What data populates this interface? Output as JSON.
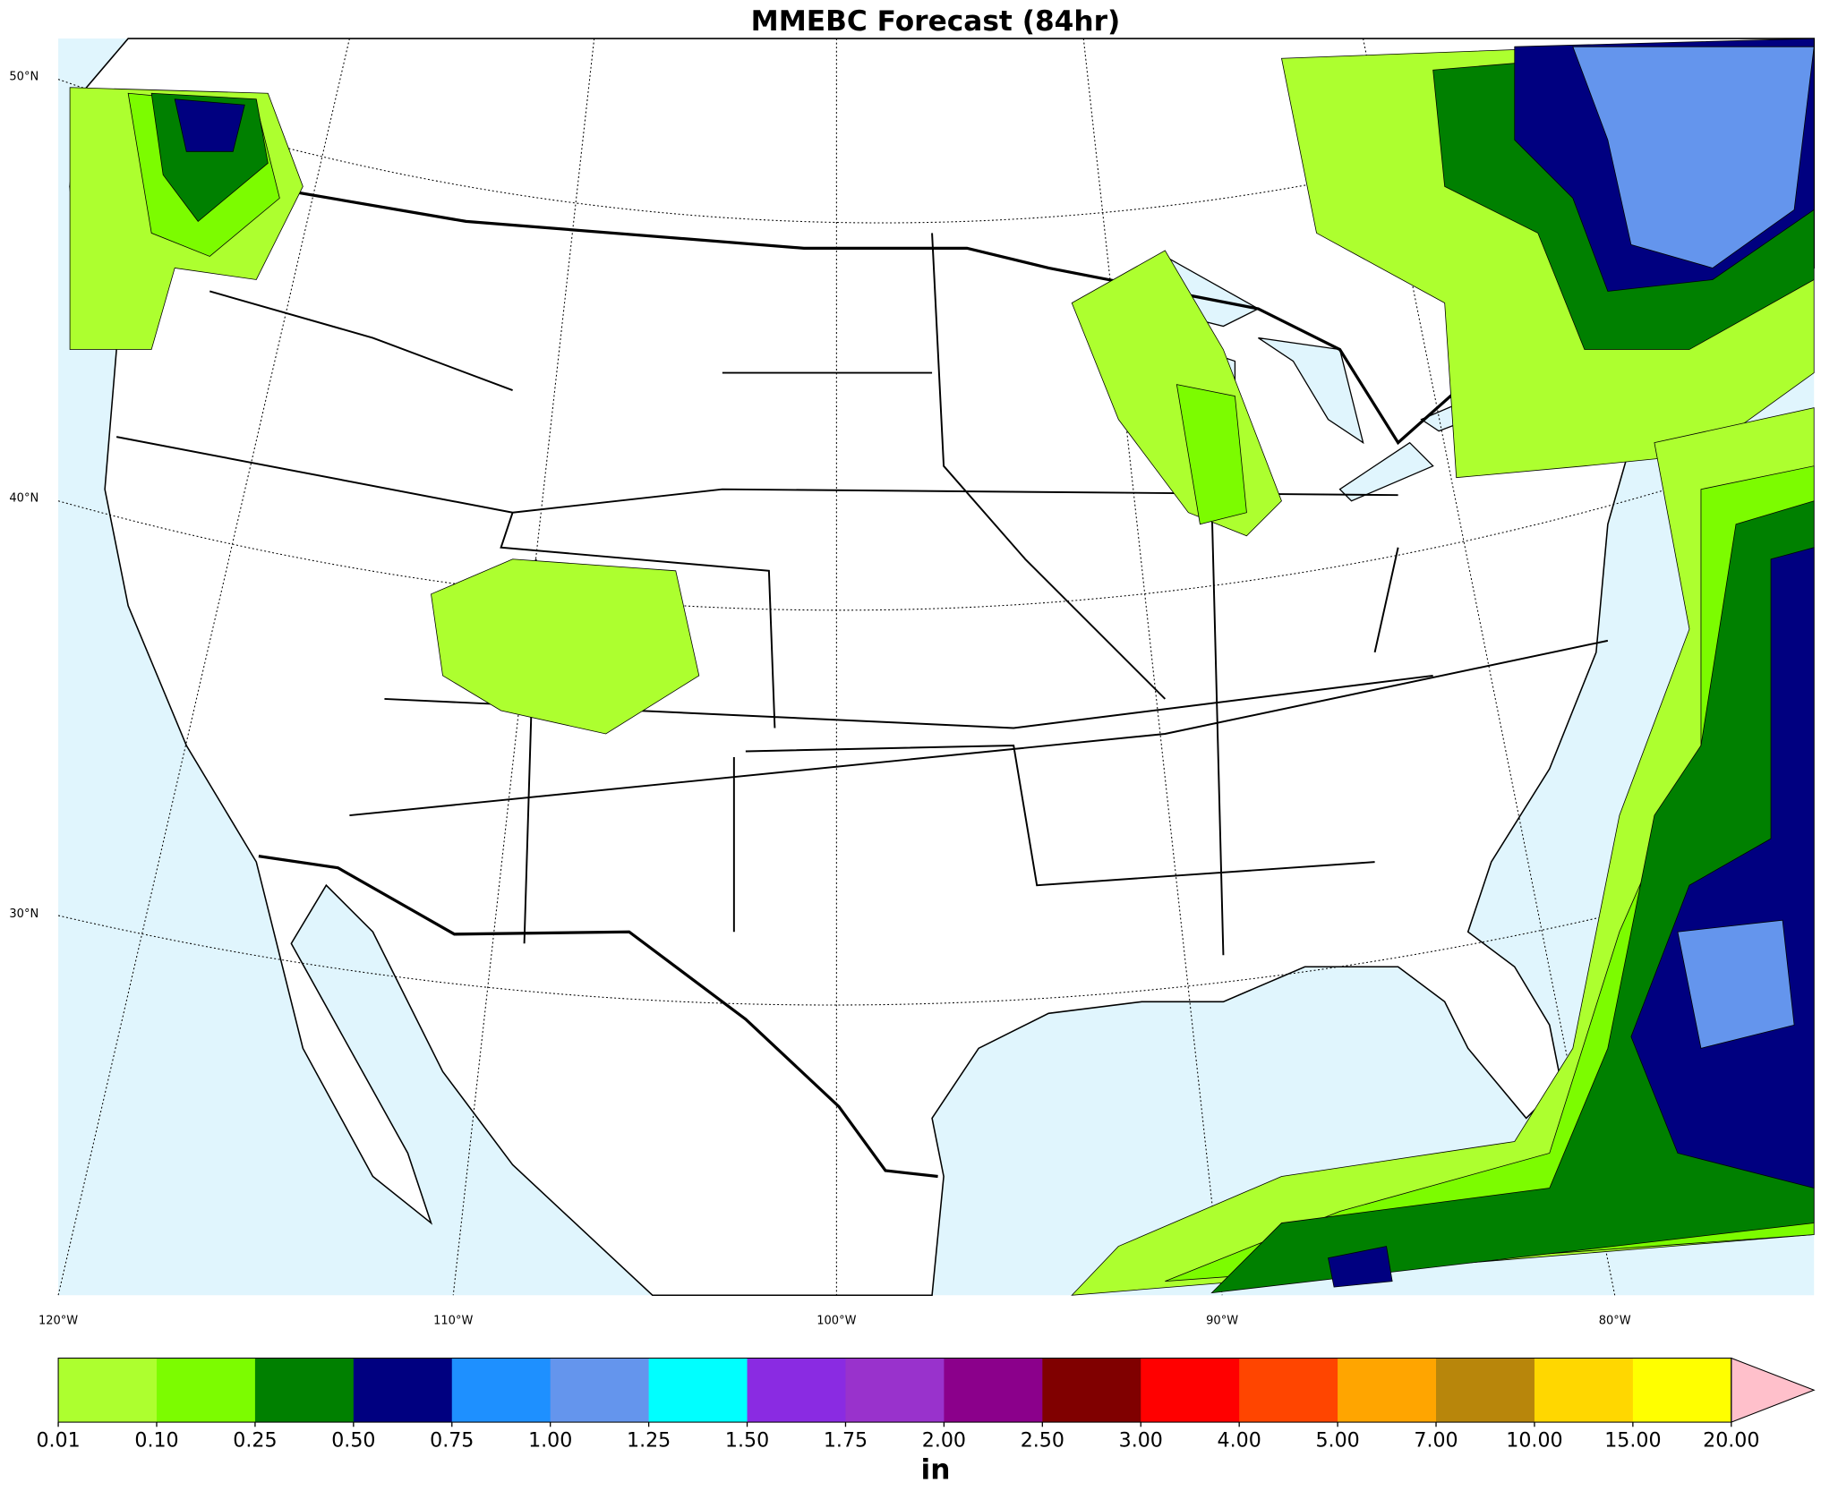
{
  "title": "MMEBC Forecast (84hr)",
  "lat_labels": [
    "50°N",
    "40°N",
    "30°N"
  ],
  "lon_labels": [
    "120°W",
    "110°W",
    "100°W",
    "90°W",
    "80°W"
  ],
  "colorbar": {
    "unit": "in",
    "levels": [
      {
        "value": 0.01,
        "label": "0.01"
      },
      {
        "value": 0.1,
        "label": "0.10"
      },
      {
        "value": 0.25,
        "label": "0.25"
      },
      {
        "value": 0.5,
        "label": "0.50"
      },
      {
        "value": 0.75,
        "label": "0.75"
      },
      {
        "value": 1,
        "label": "1.00"
      },
      {
        "value": 1.25,
        "label": "1.25"
      },
      {
        "value": 1.5,
        "label": "1.50"
      },
      {
        "value": 1.75,
        "label": "1.75"
      },
      {
        "value": 2,
        "label": "2.00"
      },
      {
        "value": 2.5,
        "label": "2.50"
      },
      {
        "value": 3,
        "label": "3.00"
      },
      {
        "value": 4,
        "label": "4.00"
      },
      {
        "value": 5,
        "label": "5.00"
      },
      {
        "value": 7,
        "label": "7.00"
      },
      {
        "value": 10,
        "label": "10.00"
      },
      {
        "value": 15,
        "label": "15.00"
      },
      {
        "value": 20,
        "label": "20.00"
      }
    ],
    "colors": [
      "#adff2f",
      "#7cfc00",
      "#008000",
      "#000080",
      "#1e90ff",
      "#6495ed",
      "#00ffff",
      "#8a2be2",
      "#9932cc",
      "#8b008b",
      "#800000",
      "#ff0000",
      "#ff4500",
      "#ffa500",
      "#b8860b",
      "#ffd700",
      "#ffff00"
    ],
    "extend_color": "#ffc0cb"
  }
}
